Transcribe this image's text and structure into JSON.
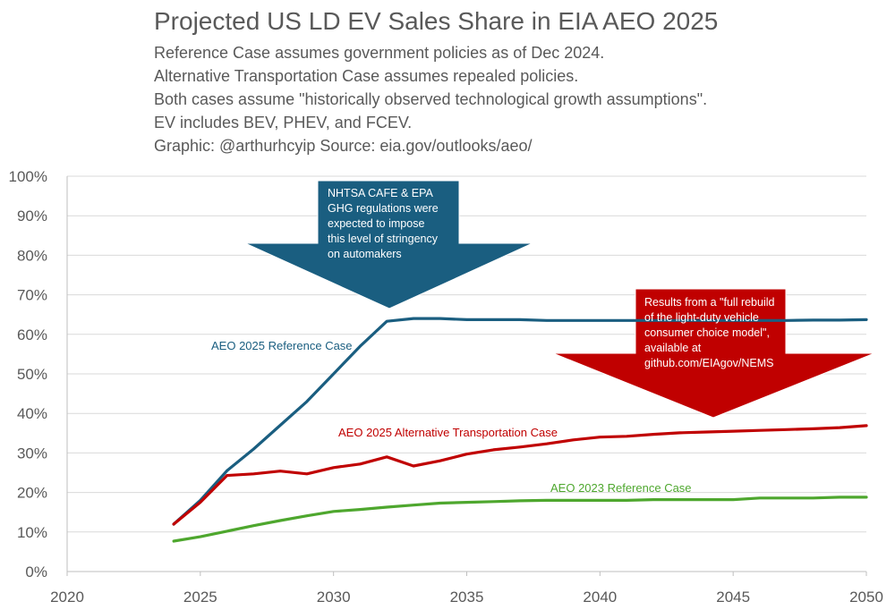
{
  "title": "Projected US LD EV Sales Share in EIA AEO 2025",
  "subtitle_lines": [
    "Reference Case assumes government policies as of Dec 2024.",
    "Alternative Transportation Case assumes repealed policies.",
    "Both cases assume \"historically observed technological growth assumptions\".",
    "EV includes BEV, PHEV, and FCEV.",
    "Graphic: @arthurhcyip   Source: eia.gov/outlooks/aeo/"
  ],
  "colors": {
    "reference_2025": "#1a5e80",
    "alternative_2025": "#c00000",
    "reference_2023": "#4ea72e",
    "arrow_blue": "#1a5e80",
    "arrow_red": "#c00000",
    "grid": "#d9d9d9",
    "text": "#595959"
  },
  "annotations": {
    "blue_arrow_lines": [
      "NHTSA CAFE & EPA",
      "GHG regulations were",
      "expected to impose",
      "this level of stringency",
      "on automakers"
    ],
    "red_arrow_lines": [
      "Results from a \"full rebuild",
      "of the light-duty vehicle",
      "consumer choice model\",",
      "available at",
      "github.com/EIAgov/NEMS"
    ]
  },
  "chart_data": {
    "type": "line",
    "title": "Projected US LD EV Sales Share in EIA AEO 2025",
    "xlabel": "",
    "ylabel": "",
    "xlim": [
      2020,
      2050
    ],
    "ylim": [
      0,
      100
    ],
    "x_ticks": [
      "2020",
      "2025",
      "2030",
      "2035",
      "2040",
      "2045",
      "2050"
    ],
    "y_ticks": [
      "0%",
      "10%",
      "20%",
      "30%",
      "40%",
      "50%",
      "60%",
      "70%",
      "80%",
      "90%",
      "100%"
    ],
    "grid": true,
    "legend": "inline labels",
    "x": [
      2024,
      2025,
      2026,
      2027,
      2028,
      2029,
      2030,
      2031,
      2032,
      2033,
      2034,
      2035,
      2036,
      2037,
      2038,
      2039,
      2040,
      2041,
      2042,
      2043,
      2044,
      2045,
      2046,
      2047,
      2048,
      2049,
      2050
    ],
    "series": [
      {
        "name": "AEO 2025 Reference Case",
        "color_key": "reference_2025",
        "values": [
          12,
          18,
          25.5,
          31,
          37,
          43,
          50,
          57,
          63.3,
          64,
          64,
          63.7,
          63.7,
          63.7,
          63.5,
          63.5,
          63.5,
          63.5,
          63.5,
          63.5,
          63.5,
          63.5,
          63.5,
          63.5,
          63.6,
          63.6,
          63.7
        ]
      },
      {
        "name": "AEO 2025 Alternative Transportation Case",
        "color_key": "alternative_2025",
        "values": [
          12,
          17.5,
          24.3,
          24.7,
          25.4,
          24.7,
          26.3,
          27.2,
          29,
          26.7,
          28,
          29.7,
          30.8,
          31.5,
          32.3,
          33.3,
          34,
          34.2,
          34.7,
          35.1,
          35.3,
          35.5,
          35.7,
          35.9,
          36.1,
          36.4,
          36.9
        ]
      },
      {
        "name": "AEO 2023 Reference Case",
        "color_key": "reference_2023",
        "values": [
          7.7,
          8.8,
          10.2,
          11.6,
          12.9,
          14.1,
          15.2,
          15.7,
          16.3,
          16.8,
          17.3,
          17.5,
          17.7,
          17.9,
          18,
          18,
          18,
          18,
          18.2,
          18.2,
          18.2,
          18.2,
          18.6,
          18.6,
          18.6,
          18.8,
          18.8
        ]
      }
    ],
    "series_labels": [
      "AEO 2025 Reference Case",
      "AEO 2025 Alternative Transportation Case",
      "AEO 2023 Reference Case"
    ]
  }
}
